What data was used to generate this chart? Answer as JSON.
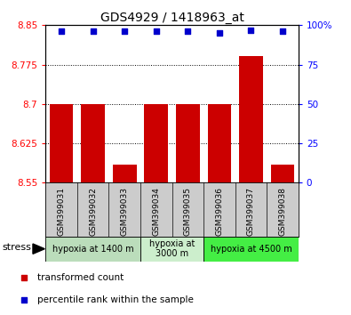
{
  "title": "GDS4929 / 1418963_at",
  "samples": [
    "GSM399031",
    "GSM399032",
    "GSM399033",
    "GSM399034",
    "GSM399035",
    "GSM399036",
    "GSM399037",
    "GSM399038"
  ],
  "bar_values": [
    8.7,
    8.7,
    8.585,
    8.7,
    8.7,
    8.7,
    8.792,
    8.585
  ],
  "percentile_values": [
    96,
    96,
    96,
    96,
    96,
    95,
    97,
    96
  ],
  "ymin": 8.55,
  "ymax": 8.85,
  "yticks": [
    8.55,
    8.625,
    8.7,
    8.775,
    8.85
  ],
  "ytick_labels": [
    "8.55",
    "8.625",
    "8.7",
    "8.775",
    "8.85"
  ],
  "right_yticks": [
    0,
    25,
    50,
    75,
    100
  ],
  "right_ytick_labels": [
    "0",
    "25",
    "50",
    "75",
    "100%"
  ],
  "bar_color": "#cc0000",
  "blue_color": "#0000cc",
  "bar_bottom": 8.55,
  "groups": [
    {
      "label": "hypoxia at 1400 m",
      "start": 0,
      "end": 3,
      "color": "#bbddbb"
    },
    {
      "label": "hypoxia at\n3000 m",
      "start": 3,
      "end": 5,
      "color": "#cceecc"
    },
    {
      "label": "hypoxia at 4500 m",
      "start": 5,
      "end": 8,
      "color": "#44ee44"
    }
  ],
  "stress_label": "stress",
  "legend_items": [
    {
      "color": "#cc0000",
      "label": "transformed count"
    },
    {
      "color": "#0000cc",
      "label": "percentile rank within the sample"
    }
  ],
  "dotted_lines": [
    8.625,
    8.7,
    8.775
  ],
  "bar_width": 0.75
}
